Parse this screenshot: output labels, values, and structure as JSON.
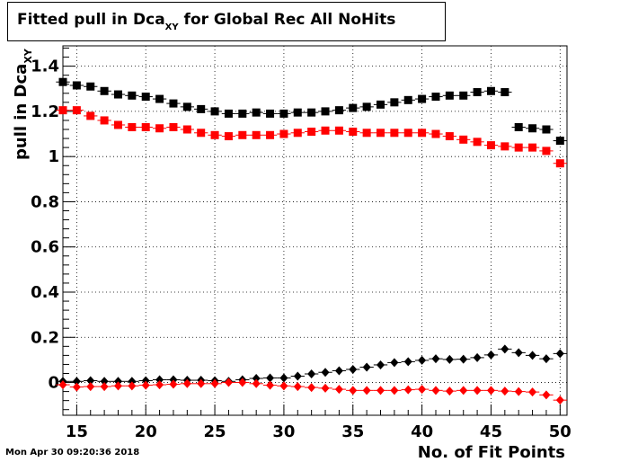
{
  "title_main": "Fitted pull in Dca",
  "title_sub": "XY",
  "title_rest": "for Global Rec All NoHits",
  "timestamp": "Mon Apr 30 09:20:36 2018",
  "chart_data": {
    "type": "scatter",
    "xlabel": "No. of Fit Points",
    "ylabel_main": "pull in Dca",
    "ylabel_sub": "XY",
    "xlim": [
      14,
      50.5
    ],
    "ylim": [
      -0.145,
      1.49
    ],
    "xticks": [
      15,
      20,
      25,
      30,
      35,
      40,
      45,
      50
    ],
    "yticks": [
      0,
      0.2,
      0.4,
      0.6,
      0.8,
      1,
      1.2,
      1.4
    ],
    "ytick_labels": [
      "0",
      "0.2",
      "0.4",
      "0.6",
      "0.8",
      "1",
      "1.2",
      "1.4"
    ],
    "grid": true,
    "x": [
      14,
      15,
      16,
      17,
      18,
      19,
      20,
      21,
      22,
      23,
      24,
      25,
      26,
      27,
      28,
      29,
      30,
      31,
      32,
      33,
      34,
      35,
      36,
      37,
      38,
      39,
      40,
      41,
      42,
      43,
      44,
      45,
      46,
      47,
      48,
      49,
      50
    ],
    "series": [
      {
        "marker": "square",
        "color": "#000000",
        "values": [
          1.33,
          1.315,
          1.31,
          1.29,
          1.275,
          1.27,
          1.265,
          1.255,
          1.235,
          1.22,
          1.21,
          1.2,
          1.19,
          1.19,
          1.195,
          1.19,
          1.19,
          1.195,
          1.195,
          1.2,
          1.205,
          1.215,
          1.22,
          1.23,
          1.24,
          1.25,
          1.255,
          1.265,
          1.27,
          1.27,
          1.285,
          1.29,
          1.285,
          1.13,
          1.125,
          1.12,
          1.07
        ]
      },
      {
        "marker": "square",
        "color": "#ff0000",
        "values": [
          1.205,
          1.205,
          1.18,
          1.16,
          1.14,
          1.13,
          1.13,
          1.125,
          1.13,
          1.12,
          1.105,
          1.095,
          1.09,
          1.095,
          1.095,
          1.095,
          1.1,
          1.105,
          1.11,
          1.115,
          1.115,
          1.11,
          1.105,
          1.105,
          1.105,
          1.105,
          1.105,
          1.1,
          1.09,
          1.075,
          1.065,
          1.05,
          1.045,
          1.04,
          1.04,
          1.025,
          0.97
        ]
      },
      {
        "marker": "diamond",
        "color": "#000000",
        "values": [
          0.005,
          0.005,
          0.008,
          0.005,
          0.005,
          0.005,
          0.008,
          0.012,
          0.012,
          0.01,
          0.01,
          0.008,
          0.005,
          0.012,
          0.018,
          0.02,
          0.02,
          0.028,
          0.038,
          0.045,
          0.052,
          0.058,
          0.068,
          0.078,
          0.088,
          0.092,
          0.098,
          0.105,
          0.102,
          0.103,
          0.11,
          0.122,
          0.148,
          0.132,
          0.12,
          0.105,
          0.128
        ]
      },
      {
        "marker": "diamond",
        "color": "#ff0000",
        "values": [
          -0.01,
          -0.02,
          -0.018,
          -0.018,
          -0.015,
          -0.015,
          -0.012,
          -0.01,
          -0.008,
          -0.005,
          -0.005,
          -0.005,
          0.0,
          0.0,
          -0.005,
          -0.012,
          -0.015,
          -0.018,
          -0.022,
          -0.025,
          -0.03,
          -0.035,
          -0.035,
          -0.035,
          -0.035,
          -0.032,
          -0.03,
          -0.035,
          -0.038,
          -0.035,
          -0.035,
          -0.035,
          -0.038,
          -0.04,
          -0.042,
          -0.055,
          -0.078
        ]
      }
    ]
  }
}
